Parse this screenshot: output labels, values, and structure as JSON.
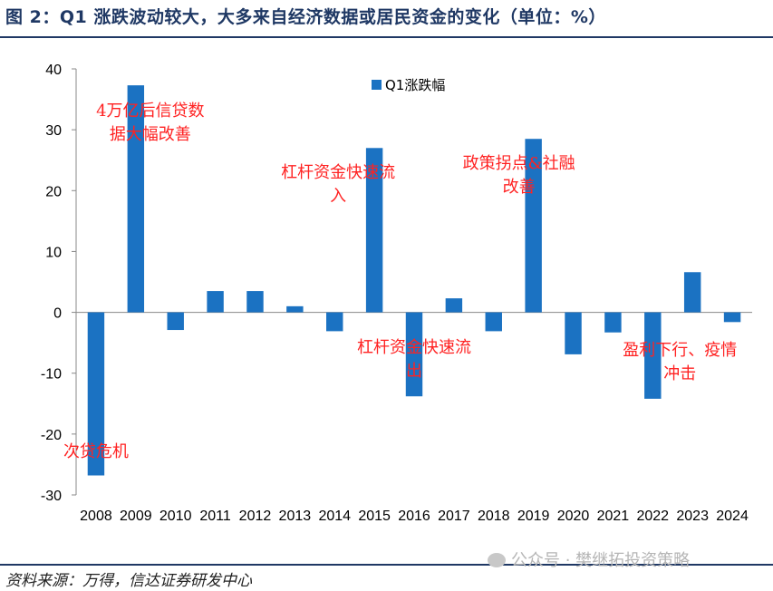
{
  "header": {
    "title": "图 2：Q1 涨跌波动较大，大多来自经济数据或居民资金的变化（单位：%）"
  },
  "footer": {
    "source": "资料来源：万得，信达证券研发中心",
    "watermark": "公众号 · 樊继拓投资策略"
  },
  "colors": {
    "bar": "#1b72c2",
    "annotation": "#ff2222",
    "rule": "#1f3864"
  },
  "chart_data": {
    "type": "bar",
    "categories": [
      "2008",
      "2009",
      "2010",
      "2011",
      "2012",
      "2013",
      "2014",
      "2015",
      "2016",
      "2017",
      "2018",
      "2019",
      "2020",
      "2021",
      "2022",
      "2023",
      "2024"
    ],
    "series": [
      {
        "name": "Q1涨跌幅",
        "values": [
          -26.8,
          37.3,
          -2.9,
          3.5,
          3.5,
          1.0,
          -3.1,
          27.0,
          -13.8,
          2.3,
          -3.1,
          28.5,
          -6.9,
          -3.3,
          -14.2,
          6.6,
          -1.6
        ]
      }
    ],
    "ylim": [
      -30,
      40
    ],
    "yticks": [
      40,
      30,
      20,
      10,
      0,
      -10,
      -20,
      -30
    ],
    "legend": "top-center",
    "grid": false,
    "annotations": [
      {
        "lines": [
          "4万亿后信贷数",
          "据大幅改善"
        ],
        "category": "2009"
      },
      {
        "lines": [
          "杠杆资金快速流",
          "入"
        ],
        "category": "2015"
      },
      {
        "lines": [
          "政策拐点&社融",
          "改善"
        ],
        "category": "2019"
      },
      {
        "lines": [
          "杠杆资金快速流",
          "出"
        ],
        "category": "2016"
      },
      {
        "lines": [
          "盈利下行、疫情",
          "冲击"
        ],
        "category": "2022"
      },
      {
        "lines": [
          "次贷危机"
        ],
        "category": "2008"
      }
    ]
  }
}
